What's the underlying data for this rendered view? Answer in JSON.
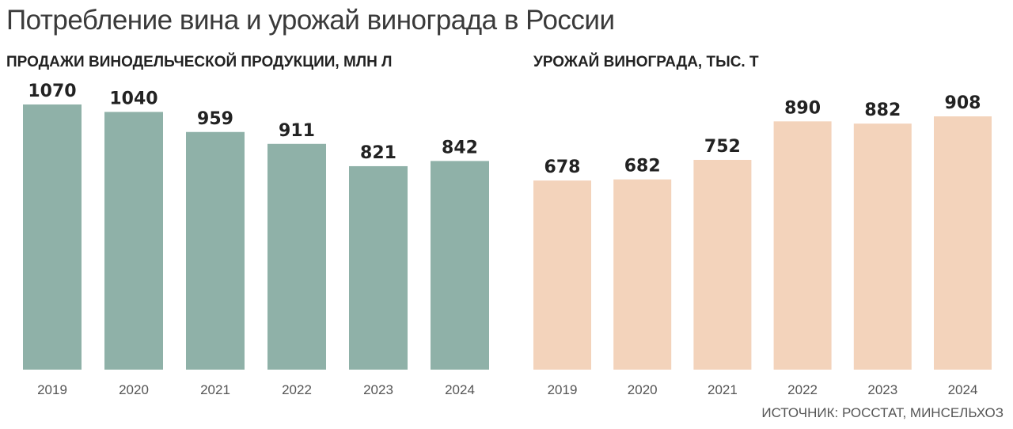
{
  "title": "Потребление вина и урожай винограда в России",
  "source": "ИСТОЧНИК: РОССТАТ, МИНСЕЛЬХОЗ",
  "chart_data": [
    {
      "type": "bar",
      "title": "ПРОДАЖИ ВИНОДЕЛЬЧЕСКОЙ ПРОДУКЦИИ, МЛН Л",
      "categories": [
        "2019",
        "2020",
        "2021",
        "2022",
        "2023",
        "2024"
      ],
      "values": [
        1070,
        1040,
        959,
        911,
        821,
        842
      ],
      "color": "#8fb1a8",
      "ylim": [
        0,
        1070
      ],
      "grid": false
    },
    {
      "type": "bar",
      "title": "УРОЖАЙ ВИНОГРАДА, ТЫС. Т",
      "categories": [
        "2019",
        "2020",
        "2021",
        "2022",
        "2023",
        "2024"
      ],
      "values": [
        678,
        682,
        752,
        890,
        882,
        908
      ],
      "color": "#f3d3bb",
      "ylim": [
        0,
        908
      ],
      "grid": false
    }
  ]
}
